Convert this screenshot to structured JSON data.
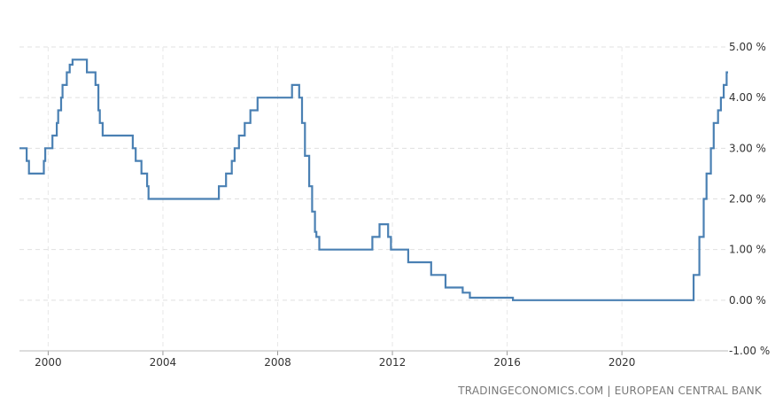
{
  "chart_data": {
    "type": "line",
    "title": "",
    "xlabel": "",
    "ylabel": "",
    "line_color": "#4a80b3",
    "grid": true,
    "legend": "none",
    "xlim": [
      1999.0,
      2023.7
    ],
    "ylim": [
      -1.0,
      5.0
    ],
    "y_ticks": [
      5.0,
      4.0,
      3.0,
      2.0,
      1.0,
      0.0,
      -1.0
    ],
    "y_tick_labels": [
      "5.00 %",
      "4.00 %",
      "3.00 %",
      "2.00 %",
      "1.00 %",
      "0.00 %",
      "-1.00 %"
    ],
    "x_ticks": [
      2000,
      2004,
      2008,
      2012,
      2016,
      2020
    ],
    "x_tick_labels": [
      "2000",
      "2004",
      "2008",
      "2012",
      "2016",
      "2020"
    ],
    "series": [
      {
        "step": true,
        "points": [
          [
            1999.0,
            3.0
          ],
          [
            1999.25,
            2.75
          ],
          [
            1999.33,
            2.5
          ],
          [
            1999.85,
            2.75
          ],
          [
            1999.9,
            3.0
          ],
          [
            2000.1,
            3.0
          ],
          [
            2000.15,
            3.25
          ],
          [
            2000.3,
            3.5
          ],
          [
            2000.35,
            3.75
          ],
          [
            2000.45,
            4.0
          ],
          [
            2000.5,
            4.25
          ],
          [
            2000.65,
            4.5
          ],
          [
            2000.75,
            4.65
          ],
          [
            2000.85,
            4.75
          ],
          [
            2001.35,
            4.5
          ],
          [
            2001.65,
            4.25
          ],
          [
            2001.75,
            3.75
          ],
          [
            2001.8,
            3.5
          ],
          [
            2001.9,
            3.25
          ],
          [
            2002.95,
            3.0
          ],
          [
            2003.05,
            2.75
          ],
          [
            2003.25,
            2.5
          ],
          [
            2003.45,
            2.25
          ],
          [
            2003.5,
            2.0
          ],
          [
            2005.95,
            2.25
          ],
          [
            2006.2,
            2.5
          ],
          [
            2006.4,
            2.75
          ],
          [
            2006.5,
            3.0
          ],
          [
            2006.65,
            3.25
          ],
          [
            2006.85,
            3.5
          ],
          [
            2007.05,
            3.75
          ],
          [
            2007.3,
            4.0
          ],
          [
            2008.5,
            4.25
          ],
          [
            2008.75,
            4.0
          ],
          [
            2008.85,
            3.5
          ],
          [
            2008.95,
            2.85
          ],
          [
            2009.1,
            2.25
          ],
          [
            2009.2,
            1.75
          ],
          [
            2009.3,
            1.35
          ],
          [
            2009.35,
            1.25
          ],
          [
            2009.45,
            1.0
          ],
          [
            2011.3,
            1.25
          ],
          [
            2011.55,
            1.5
          ],
          [
            2011.85,
            1.25
          ],
          [
            2011.95,
            1.0
          ],
          [
            2012.5,
            1.0
          ],
          [
            2012.55,
            0.75
          ],
          [
            2013.35,
            0.5
          ],
          [
            2013.85,
            0.25
          ],
          [
            2014.45,
            0.15
          ],
          [
            2014.7,
            0.05
          ],
          [
            2016.2,
            0.0
          ],
          [
            2022.5,
            0.5
          ],
          [
            2022.7,
            1.25
          ],
          [
            2022.85,
            2.0
          ],
          [
            2022.95,
            2.5
          ],
          [
            2023.1,
            3.0
          ],
          [
            2023.2,
            3.5
          ],
          [
            2023.35,
            3.75
          ],
          [
            2023.45,
            4.0
          ],
          [
            2023.55,
            4.25
          ],
          [
            2023.65,
            4.5
          ],
          [
            2023.7,
            4.5
          ]
        ]
      }
    ]
  },
  "source_text": "TRADINGECONOMICS.COM | EUROPEAN CENTRAL BANK"
}
